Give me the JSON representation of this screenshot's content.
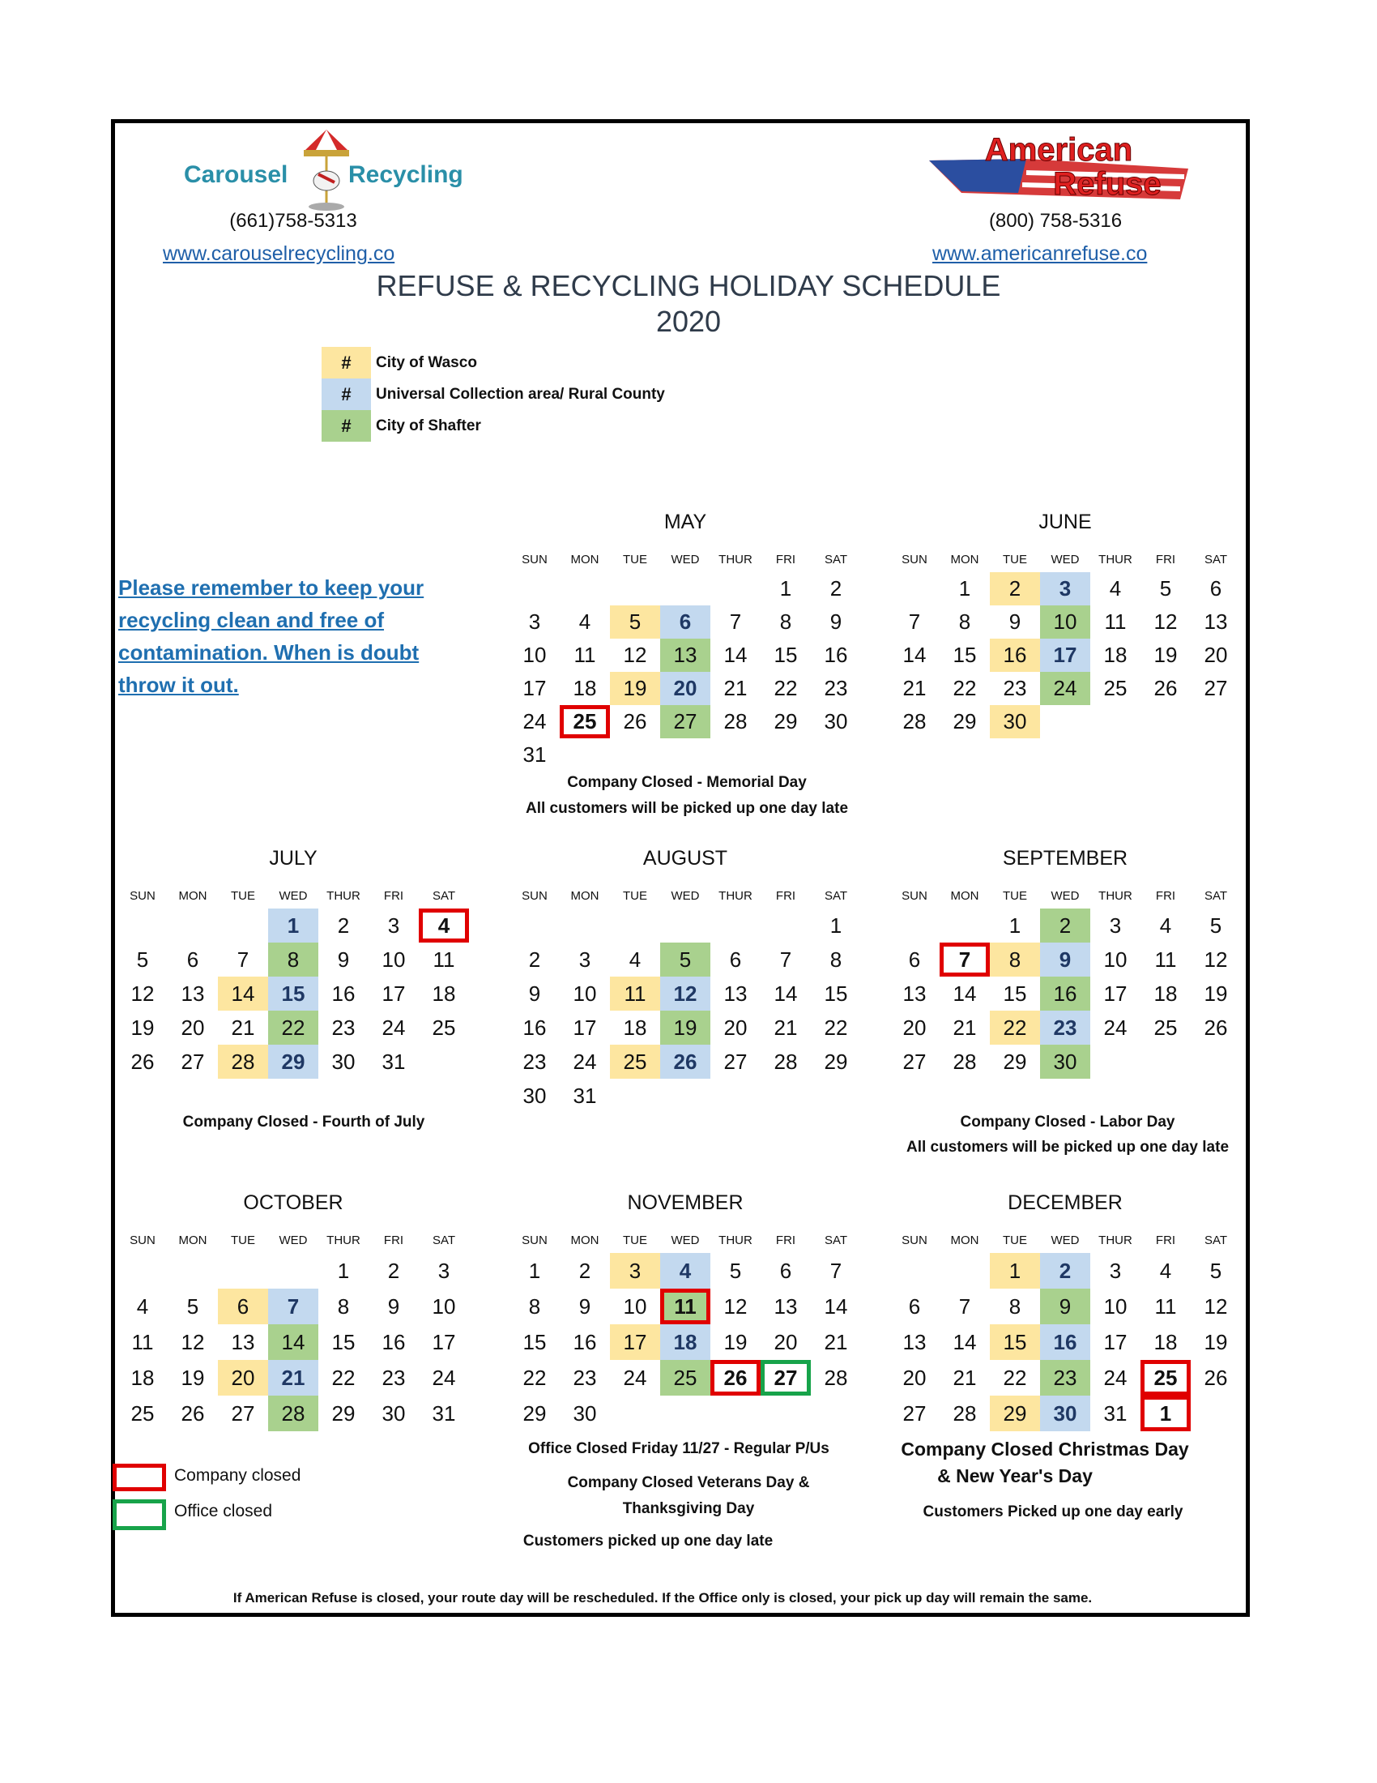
{
  "header": {
    "left_logo": {
      "text_left": "Carousel",
      "text_right": "Recycling"
    },
    "left_phone": "(661)758-5313",
    "left_url": "www.carouselrecycling.co",
    "right_logo": {
      "line1": "American",
      "line2": "Refuse"
    },
    "right_phone": "(800) 758-5316",
    "right_url": "www.americanrefuse.co",
    "title": "REFUSE & RECYCLING HOLIDAY SCHEDULE",
    "year": "2020"
  },
  "colors": {
    "wasco": "#fde6a0",
    "universal": "#c3d9ef",
    "shafter": "#a9d18e",
    "company_closed": "#e00000",
    "office_closed": "#17a34a"
  },
  "legend": [
    {
      "symbol": "#",
      "label": "City of Wasco",
      "color": "wasco"
    },
    {
      "symbol": "#",
      "label": "Universal Collection area/ Rural County",
      "color": "universal"
    },
    {
      "symbol": "#",
      "label": "City of Shafter",
      "color": "shafter"
    }
  ],
  "tip_lines": [
    "Please remember to keep your ",
    "recycling clean and free of ",
    "contamination. When is doubt ",
    "throw it out. "
  ],
  "weekdays": [
    "SUN",
    "MON",
    "TUE",
    "WED",
    "THUR",
    "FRI",
    "SAT"
  ],
  "months": [
    {
      "name": "MAY",
      "weeks": [
        [
          null,
          null,
          null,
          null,
          null,
          1,
          2
        ],
        [
          3,
          4,
          5,
          6,
          7,
          8,
          9
        ],
        [
          10,
          11,
          12,
          13,
          14,
          15,
          16
        ],
        [
          17,
          18,
          19,
          20,
          21,
          22,
          23
        ],
        [
          24,
          25,
          26,
          27,
          28,
          29,
          30
        ],
        [
          31
        ]
      ],
      "wasco": [
        5,
        19
      ],
      "universal": [
        6,
        20
      ],
      "shafter": [
        13,
        27
      ],
      "company_closed": [
        25
      ],
      "office_closed": []
    },
    {
      "name": "JUNE",
      "weeks": [
        [
          null,
          1,
          2,
          3,
          4,
          5,
          6
        ],
        [
          7,
          8,
          9,
          10,
          11,
          12,
          13
        ],
        [
          14,
          15,
          16,
          17,
          18,
          19,
          20
        ],
        [
          21,
          22,
          23,
          24,
          25,
          26,
          27
        ],
        [
          28,
          29,
          30
        ]
      ],
      "wasco": [
        2,
        16,
        30
      ],
      "universal": [
        3,
        17
      ],
      "shafter": [
        10,
        24
      ],
      "company_closed": [],
      "office_closed": []
    },
    {
      "name": "JULY",
      "weeks": [
        [
          null,
          null,
          null,
          1,
          2,
          3,
          4
        ],
        [
          5,
          6,
          7,
          8,
          9,
          10,
          11
        ],
        [
          12,
          13,
          14,
          15,
          16,
          17,
          18
        ],
        [
          19,
          20,
          21,
          22,
          23,
          24,
          25
        ],
        [
          26,
          27,
          28,
          29,
          30,
          31
        ]
      ],
      "wasco": [
        14,
        28
      ],
      "universal": [
        1,
        15,
        29
      ],
      "shafter": [
        8,
        22
      ],
      "company_closed": [
        4
      ],
      "office_closed": []
    },
    {
      "name": "AUGUST",
      "weeks": [
        [
          null,
          null,
          null,
          null,
          null,
          null,
          1
        ],
        [
          2,
          3,
          4,
          5,
          6,
          7,
          8
        ],
        [
          9,
          10,
          11,
          12,
          13,
          14,
          15
        ],
        [
          16,
          17,
          18,
          19,
          20,
          21,
          22
        ],
        [
          23,
          24,
          25,
          26,
          27,
          28,
          29
        ],
        [
          30,
          31
        ]
      ],
      "wasco": [
        11,
        25
      ],
      "universal": [
        12,
        26
      ],
      "shafter": [
        5,
        19
      ],
      "company_closed": [],
      "office_closed": []
    },
    {
      "name": "SEPTEMBER",
      "weeks": [
        [
          null,
          null,
          1,
          2,
          3,
          4,
          5
        ],
        [
          6,
          7,
          8,
          9,
          10,
          11,
          12
        ],
        [
          13,
          14,
          15,
          16,
          17,
          18,
          19
        ],
        [
          20,
          21,
          22,
          23,
          24,
          25,
          26
        ],
        [
          27,
          28,
          29,
          30
        ]
      ],
      "wasco": [
        8,
        22
      ],
      "universal": [
        9,
        23
      ],
      "shafter": [
        2,
        16,
        30
      ],
      "company_closed": [
        7
      ],
      "office_closed": []
    },
    {
      "name": "OCTOBER",
      "weeks": [
        [
          null,
          null,
          null,
          null,
          1,
          2,
          3
        ],
        [
          4,
          5,
          6,
          7,
          8,
          9,
          10
        ],
        [
          11,
          12,
          13,
          14,
          15,
          16,
          17
        ],
        [
          18,
          19,
          20,
          21,
          22,
          23,
          24
        ],
        [
          25,
          26,
          27,
          28,
          29,
          30,
          31
        ]
      ],
      "wasco": [
        6,
        20
      ],
      "universal": [
        7,
        21
      ],
      "shafter": [
        14,
        28
      ],
      "company_closed": [],
      "office_closed": []
    },
    {
      "name": "NOVEMBER",
      "weeks": [
        [
          1,
          2,
          3,
          4,
          5,
          6,
          7
        ],
        [
          8,
          9,
          10,
          11,
          12,
          13,
          14
        ],
        [
          15,
          16,
          17,
          18,
          19,
          20,
          21
        ],
        [
          22,
          23,
          24,
          25,
          26,
          27,
          28
        ],
        [
          29,
          30
        ]
      ],
      "wasco": [
        3,
        17
      ],
      "universal": [
        4,
        18
      ],
      "shafter": [
        11,
        25
      ],
      "company_closed": [
        11,
        26
      ],
      "office_closed": [
        27
      ]
    },
    {
      "name": "DECEMBER",
      "weeks": [
        [
          null,
          null,
          1,
          2,
          3,
          4,
          5
        ],
        [
          6,
          7,
          8,
          9,
          10,
          11,
          12
        ],
        [
          13,
          14,
          15,
          16,
          17,
          18,
          19
        ],
        [
          20,
          21,
          22,
          23,
          24,
          25,
          26
        ],
        [
          27,
          28,
          29,
          30,
          31,
          "1"
        ]
      ],
      "wasco": [
        1,
        15,
        29
      ],
      "universal": [
        2,
        16,
        30
      ],
      "shafter": [
        9,
        23
      ],
      "company_closed": [
        25,
        "1"
      ],
      "office_closed": []
    }
  ],
  "notes": {
    "may": [
      "Company Closed - Memorial Day",
      "All customers will be picked up one day late"
    ],
    "july": [
      "Company Closed - Fourth of July"
    ],
    "september": [
      "Company Closed - Labor Day",
      "All customers will be picked up one day late"
    ],
    "november": [
      "Office Closed Friday 11/27  - Regular P/Us",
      "Company Closed Veterans Day &",
      "Thanksgiving Day",
      "Customers picked up one day late"
    ],
    "december": [
      "Company Closed Christmas Day",
      "& New Year's Day",
      "Customers Picked up one day early"
    ]
  },
  "key": {
    "company_closed": "Company closed",
    "office_closed": "Office closed"
  },
  "footer": "If American Refuse is closed, your route day will be rescheduled. If the Office only is closed, your pick up day will remain the same."
}
